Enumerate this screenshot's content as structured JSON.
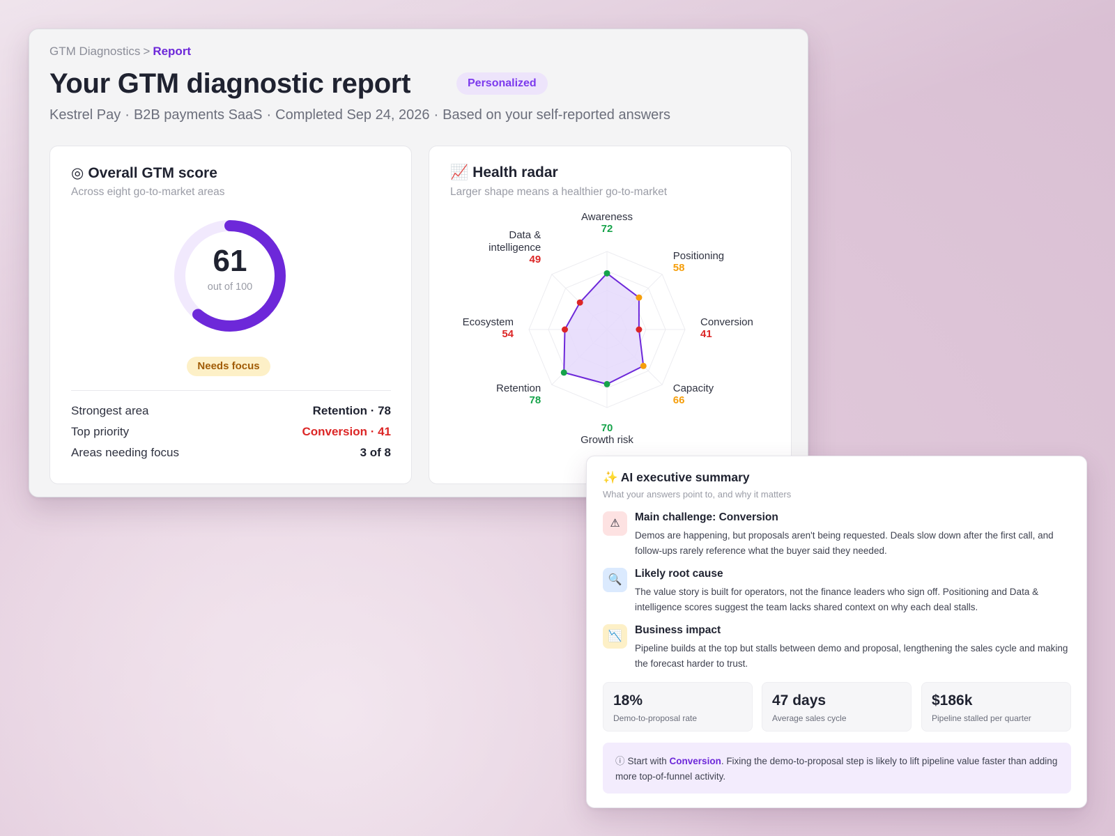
{
  "breadcrumb": {
    "parent": "GTM Diagnostics",
    "separator": ">",
    "current": "Report"
  },
  "header": {
    "title": "Your GTM diagnostic report",
    "badge": "Personalized",
    "company": "Kestrel Pay",
    "segment": "B2B payments SaaS",
    "completed": "Completed Sep 24, 2026",
    "basis": "Based on your self-reported answers",
    "dot": "·"
  },
  "score_card": {
    "icon": "◎",
    "title": "Overall GTM score",
    "subtitle": "Across eight go-to-market areas",
    "score": "61",
    "score_fraction": 0.61,
    "caption": "out of 100",
    "status": "Needs focus",
    "rows": [
      {
        "label": "Strongest area",
        "value": "Retention · 78"
      },
      {
        "label": "Top priority",
        "value": "Conversion · 41"
      },
      {
        "label": "Areas needing focus",
        "value": "3 of 8"
      }
    ]
  },
  "radar_card": {
    "icon": "📈",
    "title": "Health radar",
    "subtitle": "Larger shape means a healthier go-to-market",
    "chart_data": {
      "type": "radar",
      "max": 100,
      "axes": [
        {
          "name": "Awareness",
          "value": 72,
          "status": "good"
        },
        {
          "name": "Positioning",
          "value": 58,
          "status": "warn"
        },
        {
          "name": "Conversion",
          "value": 41,
          "status": "bad"
        },
        {
          "name": "Capacity",
          "value": 66,
          "status": "warn"
        },
        {
          "name": "Growth risk",
          "value": 70,
          "status": "good"
        },
        {
          "name": "Retention",
          "value": 78,
          "status": "good"
        },
        {
          "name": "Ecosystem",
          "value": 54,
          "status": "bad"
        },
        {
          "name": "Data & intelligence",
          "value": 49,
          "status": "bad"
        }
      ],
      "status_colors": {
        "good": "#16a34a",
        "warn": "#f59e0b",
        "bad": "#dc2626"
      },
      "line_color": "#6d28d9",
      "fill_color": "#e5d9fb",
      "grid": true
    }
  },
  "ai_summary": {
    "icon": "✨",
    "title": "AI executive summary",
    "subtitle": "What your answers point to, and why it matters",
    "findings": [
      {
        "icon": "warning-icon",
        "glyph": "⚠",
        "heading": "Main challenge: Conversion",
        "body": "Demos are happening, but proposals aren't being requested. Deals slow down after the first call, and follow-ups rarely reference what the buyer said they needed."
      },
      {
        "icon": "magnifier-icon",
        "glyph": "🔍",
        "heading": "Likely root cause",
        "body": "The value story is built for operators, not the finance leaders who sign off. Positioning and Data & intelligence scores suggest the team lacks shared context on why each deal stalls."
      },
      {
        "icon": "trend-down-icon",
        "glyph": "📉",
        "heading": "Business impact",
        "body": "Pipeline builds at the top but stalls between demo and proposal, lengthening the sales cycle and making the forecast harder to trust."
      }
    ],
    "metrics": [
      {
        "value": "18%",
        "label": "Demo-to-proposal rate"
      },
      {
        "value": "47 days",
        "label": "Average sales cycle"
      },
      {
        "value": "$186k",
        "label": "Pipeline stalled per quarter"
      }
    ],
    "callout": {
      "icon": "ⓘ",
      "prefix": "Start with",
      "highlight": "Conversion",
      "suffix": ". Fixing the demo-to-proposal step is likely to lift pipeline value faster than adding more top-of-funnel activity."
    }
  }
}
